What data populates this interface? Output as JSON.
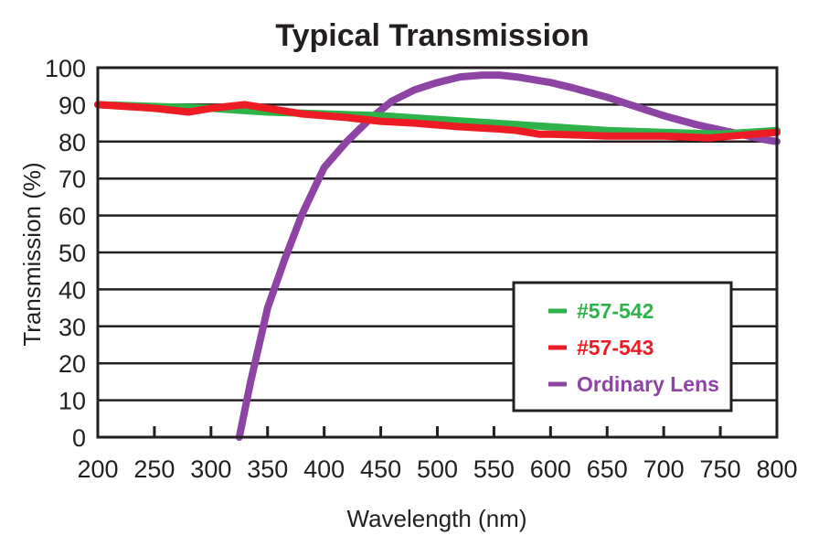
{
  "chart_data": {
    "type": "line",
    "title": "Typical Transmission",
    "xlabel": "Wavelength (nm)",
    "ylabel": "Transmission (%)",
    "xlim": [
      200,
      800
    ],
    "ylim": [
      0,
      100
    ],
    "xticks": [
      200,
      250,
      300,
      350,
      400,
      450,
      500,
      550,
      600,
      650,
      700,
      750,
      800
    ],
    "yticks": [
      0,
      10,
      20,
      30,
      40,
      50,
      60,
      70,
      80,
      90,
      100
    ],
    "grid": "horizontal",
    "legend_position": "bottom-right",
    "series": [
      {
        "name": "#57-542",
        "color": "#2db34a",
        "x": [
          200,
          250,
          300,
          350,
          400,
          450,
          500,
          550,
          600,
          650,
          700,
          750,
          800
        ],
        "y": [
          90,
          89.5,
          89,
          88,
          87.5,
          87,
          86,
          85,
          84,
          83,
          82.5,
          82,
          83
        ]
      },
      {
        "name": "#57-543",
        "color": "#ed1c24",
        "x": [
          200,
          225,
          250,
          280,
          300,
          330,
          350,
          380,
          400,
          420,
          450,
          480,
          500,
          520,
          550,
          570,
          590,
          600,
          620,
          650,
          680,
          700,
          740,
          760,
          780,
          800
        ],
        "y": [
          90,
          89.5,
          89,
          88,
          89,
          90,
          89,
          87.5,
          87,
          86.5,
          85.5,
          85,
          84.5,
          84,
          83.5,
          83,
          82,
          82,
          81.8,
          81.5,
          81.5,
          81.5,
          81,
          81.5,
          82,
          82.5
        ]
      },
      {
        "name": "Ordinary Lens",
        "color": "#8e44a4",
        "x": [
          325,
          335,
          350,
          365,
          380,
          400,
          420,
          440,
          460,
          480,
          500,
          520,
          540,
          555,
          570,
          600,
          620,
          650,
          680,
          700,
          730,
          760,
          790,
          800
        ],
        "y": [
          0,
          15,
          35,
          48,
          60,
          73,
          80,
          86,
          91,
          94,
          96,
          97.5,
          98,
          98,
          97.5,
          96,
          94.5,
          92,
          89,
          87,
          84.5,
          82.5,
          80.5,
          80
        ]
      }
    ]
  }
}
